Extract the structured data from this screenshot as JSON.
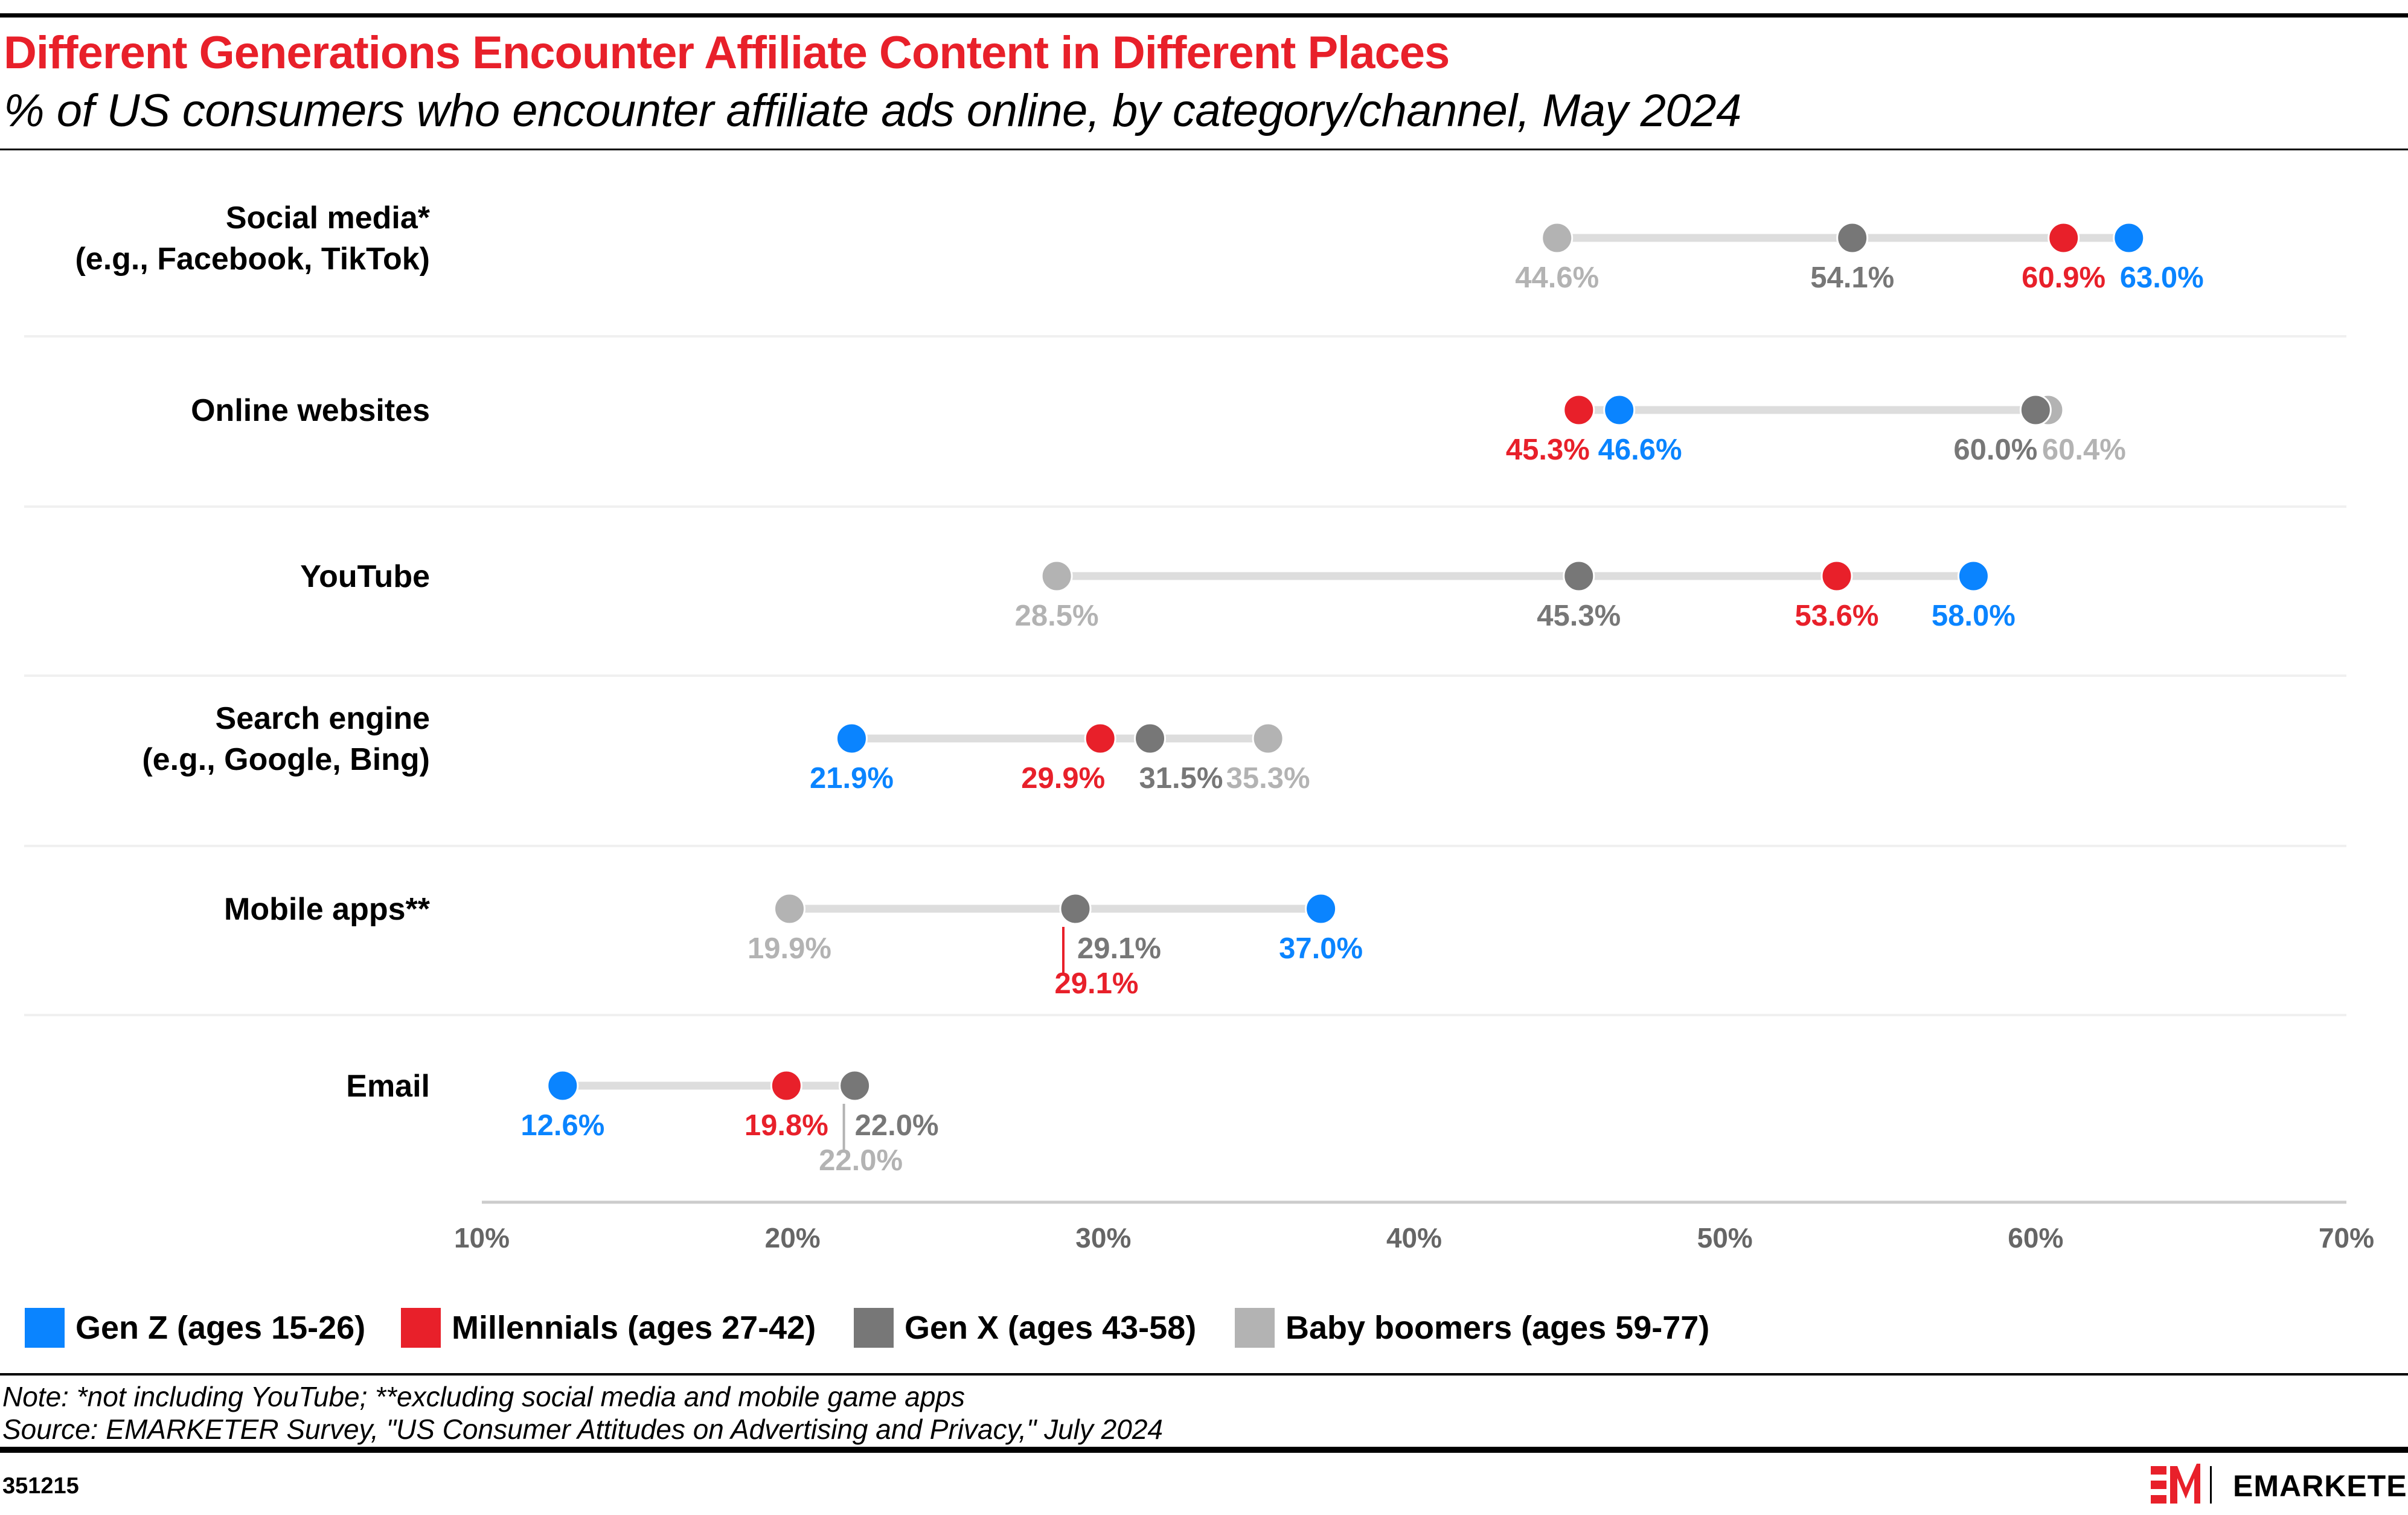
{
  "header": {
    "title": "Different Generations Encounter Affiliate Content in Different Places",
    "subtitle": "% of US consumers who encounter affiliate ads online, by category/channel, May 2024"
  },
  "chart_data": {
    "type": "dot-range",
    "title": "Different Generations Encounter Affiliate Content in Different Places",
    "subtitle": "% of US consumers who encounter affiliate ads online, by category/channel, May 2024",
    "categories": [
      [
        "Social media*",
        "(e.g., Facebook, TikTok)"
      ],
      [
        "Online websites"
      ],
      [
        "YouTube"
      ],
      [
        "Search engine",
        "(e.g., Google, Bing)"
      ],
      [
        "Mobile apps**"
      ],
      [
        "Email"
      ]
    ],
    "series": [
      {
        "name": "Gen Z (ages 15-26)",
        "color": "#0a84ff",
        "values": [
          63.0,
          46.6,
          58.0,
          21.9,
          37.0,
          12.6
        ]
      },
      {
        "name": "Millennials (ages 27-42)",
        "color": "#e8202a",
        "values": [
          60.9,
          45.3,
          53.6,
          29.9,
          29.1,
          19.8
        ]
      },
      {
        "name": "Gen X (ages 43-58)",
        "color": "#777777",
        "values": [
          54.1,
          60.0,
          45.3,
          31.5,
          29.1,
          22.0
        ]
      },
      {
        "name": "Baby boomers (ages 59-77)",
        "color": "#b3b3b3",
        "values": [
          44.6,
          60.4,
          28.5,
          35.3,
          19.9,
          22.0
        ]
      }
    ],
    "xlim": [
      10,
      70
    ],
    "xticks": [
      "10%",
      "20%",
      "30%",
      "40%",
      "50%",
      "60%",
      "70%"
    ],
    "xtick_values": [
      10,
      20,
      30,
      40,
      50,
      60,
      70
    ],
    "grid": false,
    "legend_position": "bottom-left",
    "connector_color": "#dddddd"
  },
  "footer": {
    "note": "Note: *not including YouTube; **excluding social media and mobile game apps",
    "source": "Source: EMARKETER Survey, \"US Consumer Attitudes on Advertising and Privacy,\" July 2024",
    "chart_id": "351215",
    "brand": "EMARKETER",
    "brand_color": "#e8202a"
  }
}
